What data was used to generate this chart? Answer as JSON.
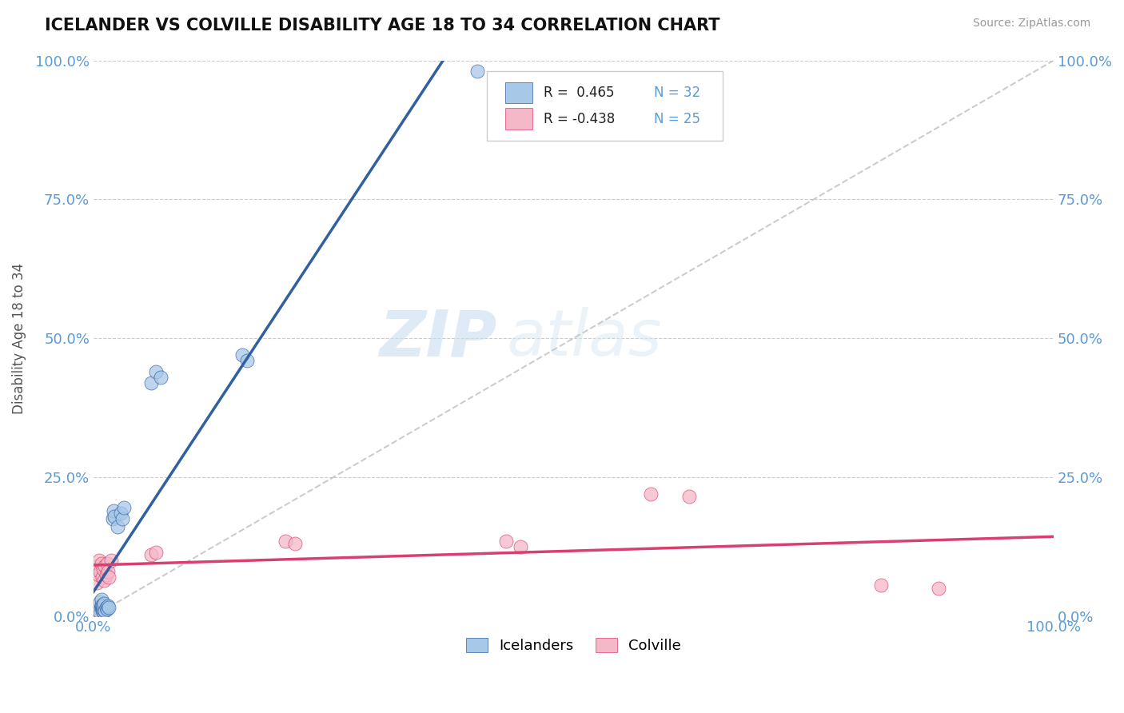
{
  "title": "ICELANDER VS COLVILLE DISABILITY AGE 18 TO 34 CORRELATION CHART",
  "source": "Source: ZipAtlas.com",
  "ylabel": "Disability Age 18 to 34",
  "xlim": [
    0,
    1.0
  ],
  "ylim": [
    0,
    1.0
  ],
  "ytick_positions": [
    0.0,
    0.25,
    0.5,
    0.75,
    1.0
  ],
  "ytick_labels": [
    "0.0%",
    "25.0%",
    "50.0%",
    "75.0%",
    "100.0%"
  ],
  "xtick_positions": [
    0.0,
    1.0
  ],
  "xtick_labels": [
    "0.0%",
    "100.0%"
  ],
  "legend_r1": "R =  0.465",
  "legend_n1": "N = 32",
  "legend_r2": "R = -0.438",
  "legend_n2": "N = 25",
  "blue_color": "#a8c8e8",
  "pink_color": "#f5b8c8",
  "blue_line_color": "#3060a0",
  "pink_line_color": "#d84070",
  "diag_color": "#c0c0c0",
  "background_color": "#ffffff",
  "watermark_zip": "ZIP",
  "watermark_atlas": "atlas",
  "tick_color": "#5b9bd5",
  "icelanders_x": [
    0.005,
    0.006,
    0.007,
    0.007,
    0.008,
    0.008,
    0.008,
    0.009,
    0.009,
    0.009,
    0.01,
    0.01,
    0.01,
    0.011,
    0.012,
    0.013,
    0.014,
    0.015,
    0.016,
    0.02,
    0.021,
    0.022,
    0.025,
    0.028,
    0.03,
    0.032,
    0.06,
    0.065,
    0.07,
    0.155,
    0.16,
    0.4
  ],
  "icelanders_y": [
    0.01,
    0.008,
    0.005,
    0.025,
    0.015,
    0.02,
    0.03,
    0.01,
    0.015,
    0.02,
    0.008,
    0.012,
    0.018,
    0.022,
    0.01,
    0.015,
    0.012,
    0.018,
    0.015,
    0.175,
    0.19,
    0.18,
    0.16,
    0.185,
    0.175,
    0.195,
    0.42,
    0.44,
    0.43,
    0.47,
    0.46,
    0.98
  ],
  "colville_x": [
    0.003,
    0.004,
    0.005,
    0.006,
    0.007,
    0.008,
    0.009,
    0.01,
    0.011,
    0.012,
    0.013,
    0.014,
    0.015,
    0.016,
    0.018,
    0.06,
    0.065,
    0.2,
    0.21,
    0.43,
    0.445,
    0.58,
    0.62,
    0.82,
    0.88
  ],
  "colville_y": [
    0.06,
    0.09,
    0.075,
    0.1,
    0.08,
    0.095,
    0.07,
    0.085,
    0.065,
    0.09,
    0.075,
    0.095,
    0.08,
    0.07,
    0.1,
    0.11,
    0.115,
    0.135,
    0.13,
    0.135,
    0.125,
    0.22,
    0.215,
    0.055,
    0.05
  ]
}
